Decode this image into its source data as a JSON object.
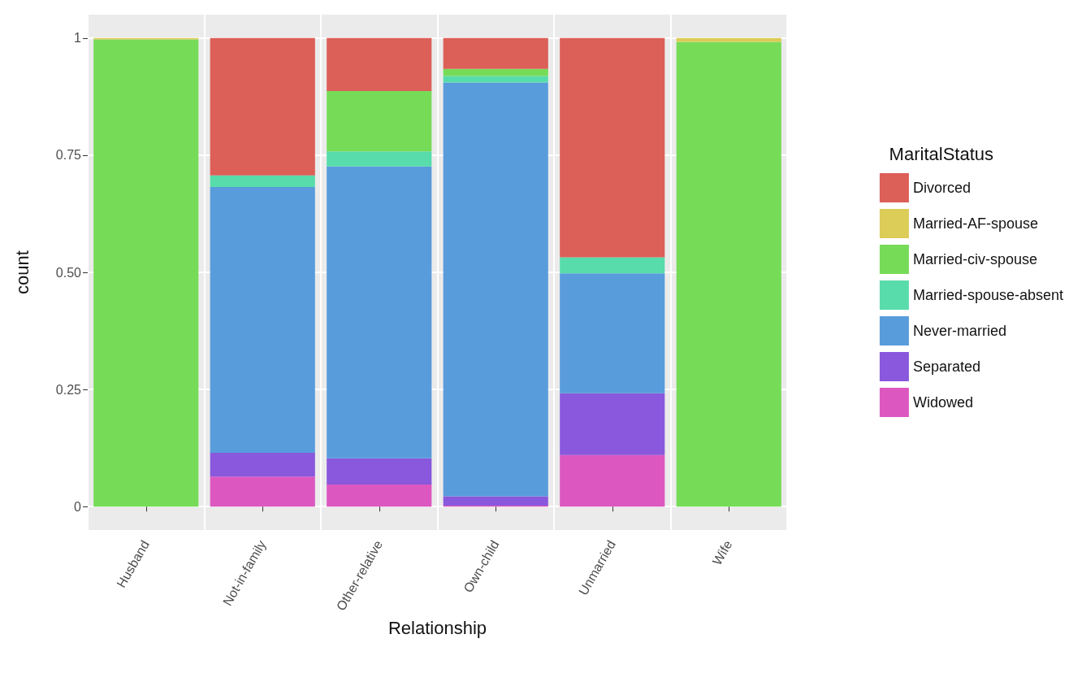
{
  "chart_data": {
    "type": "bar",
    "stacked": true,
    "xlabel": "Relationship",
    "ylabel": "count",
    "legend_title": "MaritalStatus",
    "legend": "right",
    "grid": true,
    "categories": [
      "Husband",
      "Not-in-family",
      "Other-relative",
      "Own-child",
      "Unmarried",
      "Wife"
    ],
    "ylim": [
      -0.05,
      1.05
    ],
    "yticks": [
      0,
      {
        "value": 0.25,
        "label": "0.25"
      },
      {
        "value": 0.5,
        "label": "0.50"
      },
      {
        "value": 0.75,
        "label": "0.75"
      },
      1
    ],
    "series": [
      {
        "name": "Widowed",
        "color": "#dc58c0",
        "values": [
          0,
          0.064,
          0.047,
          0.002,
          0.11,
          0
        ]
      },
      {
        "name": "Separated",
        "color": "#8958dc",
        "values": [
          0,
          0.051,
          0.056,
          0.02,
          0.132,
          0
        ]
      },
      {
        "name": "Never-married",
        "color": "#589cdc",
        "values": [
          0,
          0.567,
          0.623,
          0.883,
          0.256,
          0
        ]
      },
      {
        "name": "Married-spouse-absent",
        "color": "#58dcab",
        "values": [
          0,
          0.025,
          0.032,
          0.014,
          0.034,
          0
        ]
      },
      {
        "name": "Married-civ-spouse",
        "color": "#76dc58",
        "values": [
          0.997,
          0,
          0.129,
          0.015,
          0,
          0.992
        ]
      },
      {
        "name": "Married-AF-spouse",
        "color": "#dccc58",
        "values": [
          0.003,
          0,
          0,
          0,
          0,
          0.008
        ]
      },
      {
        "name": "Divorced",
        "color": "#dc5f58",
        "values": [
          0,
          0.293,
          0.113,
          0.066,
          0.468,
          0
        ]
      }
    ]
  }
}
